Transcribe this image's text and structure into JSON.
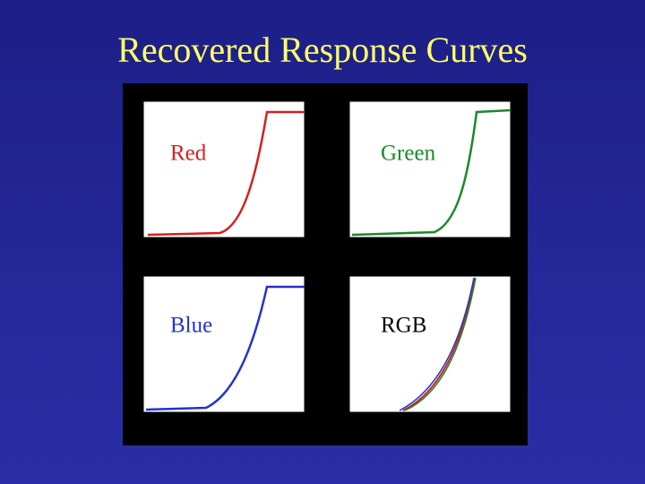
{
  "title": "Recovered Response Curves",
  "panels": [
    {
      "label": "Red",
      "color": "#d42020"
    },
    {
      "label": "Green",
      "color": "#1a8a2a"
    },
    {
      "label": "Blue",
      "color": "#2233cc"
    },
    {
      "label": "RGB",
      "color": "#000000"
    }
  ]
}
